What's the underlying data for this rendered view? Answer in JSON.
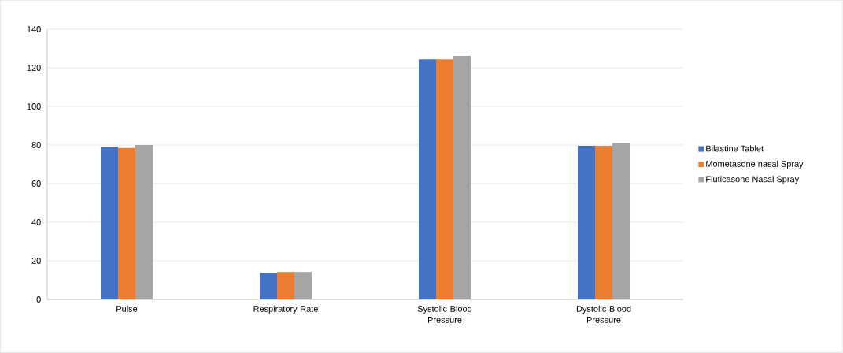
{
  "chart_data": {
    "type": "bar",
    "categories": [
      "Pulse",
      "Respiratory Rate",
      "Systolic Blood Pressure",
      "Dystolic Blood Pressure"
    ],
    "series": [
      {
        "name": "Bilastine Tablet",
        "color": "#4472c4",
        "values": [
          79,
          13.7,
          124.4,
          79.6
        ]
      },
      {
        "name": "Mometasone nasal Spray",
        "color": "#ed7d31",
        "values": [
          78.5,
          14.2,
          124.4,
          79.6
        ]
      },
      {
        "name": "Fluticasone Nasal Spray",
        "color": "#a5a5a5",
        "values": [
          80,
          14.2,
          126.1,
          81
        ]
      }
    ],
    "ylim": [
      0,
      140
    ],
    "yticks": [
      0,
      20,
      40,
      60,
      80,
      100,
      120,
      140
    ],
    "grid": "y",
    "legend": "right"
  }
}
